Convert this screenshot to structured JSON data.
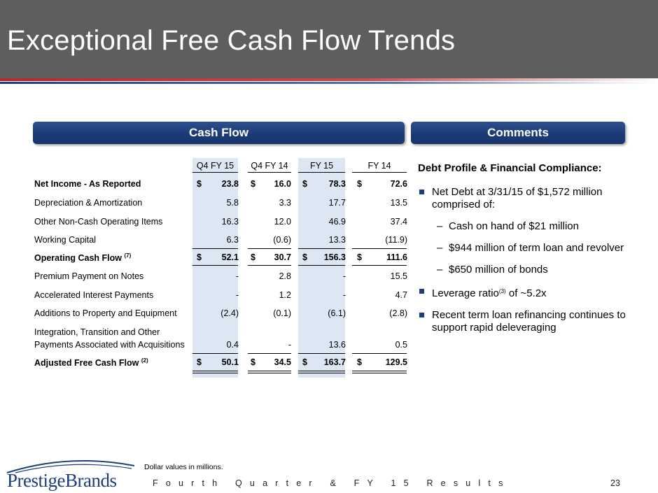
{
  "title": "Exceptional Free Cash Flow Trends",
  "banners": {
    "left": "Cash Flow",
    "right": "Comments"
  },
  "table": {
    "headers": [
      "Q4 FY 15",
      "Q4 FY 14",
      "FY 15",
      "FY 14"
    ],
    "rows": [
      {
        "label": "Net Income - As Reported",
        "values": [
          "23.8",
          "16.0",
          "78.3",
          "72.6"
        ]
      },
      {
        "label": "Depreciation & Amortization",
        "values": [
          "5.8",
          "3.3",
          "17.7",
          "13.5"
        ]
      },
      {
        "label": "Other Non-Cash Operating Items",
        "values": [
          "16.3",
          "12.0",
          "46.9",
          "37.4"
        ]
      },
      {
        "label": "Working Capital",
        "values": [
          "6.3",
          "(0.6)",
          "13.3",
          "(11.9)"
        ]
      },
      {
        "label": "Operating Cash Flow",
        "sup": "(7)",
        "values": [
          "52.1",
          "30.7",
          "156.3",
          "111.6"
        ]
      },
      {
        "label": "Premium Payment on Notes",
        "values": [
          "-",
          "2.8",
          "-",
          "15.5"
        ]
      },
      {
        "label": "Accelerated Interest Payments",
        "values": [
          "-",
          "1.2",
          "-",
          "4.7"
        ]
      },
      {
        "label": "Additions to Property and Equipment",
        "values": [
          "(2.4)",
          "(0.1)",
          "(6.1)",
          "(2.8)"
        ]
      },
      {
        "label_line1": "Integration, Transition and Other",
        "label": "Payments Associated with Acquisitions",
        "values": [
          "0.4",
          "-",
          "13.6",
          "0.5"
        ]
      },
      {
        "label": "Adjusted Free Cash Flow",
        "sup": "(2)",
        "values": [
          "50.1",
          "34.5",
          "163.7",
          "129.5"
        ]
      }
    ],
    "currency_symbol": "$"
  },
  "comments": {
    "heading": "Debt Profile & Financial Compliance:",
    "bullet1": "Net Debt at 3/31/15 of $1,572 million comprised of:",
    "sub1": "Cash on hand of $21 million",
    "sub2": "$944 million of term loan and revolver",
    "sub3": "$650 million of bonds",
    "bullet2_pre": "Leverage ratio",
    "bullet2_sup": "(3)",
    "bullet2_post": " of ~5.2x",
    "bullet3": "Recent term loan refinancing continues to support rapid deleveraging",
    "dash": "–"
  },
  "footer": {
    "note": "Dollar values in millions.",
    "text": "Fourth Quarter & FY 15 Results",
    "page": "23",
    "logo": "PrestigeBrands"
  },
  "colors": {
    "header": "#5e5e5e",
    "banner": "#1b3a75",
    "highlight": "#dde6f3",
    "accent_red": "#b8282d"
  }
}
